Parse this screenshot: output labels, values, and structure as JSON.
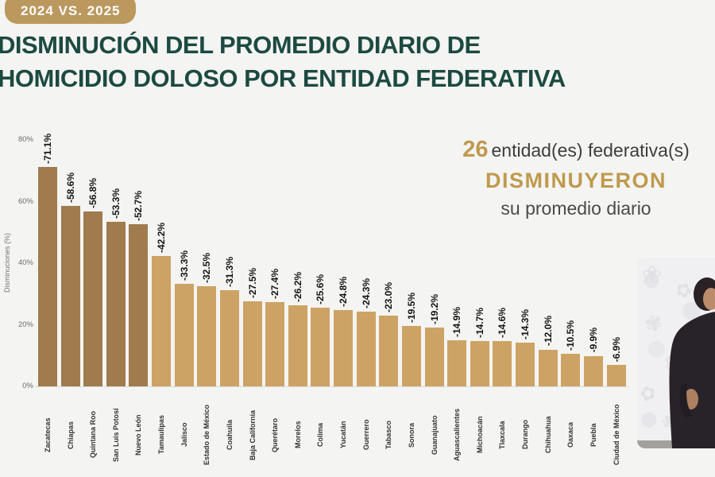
{
  "header": {
    "badge": "2024 VS. 2025",
    "title_line1": "DISMINUCIÓN DEL PROMEDIO DIARIO DE",
    "title_line2": "HOMICIDIO DOLOSO POR ENTIDAD FEDERATIVA"
  },
  "chart_data": {
    "type": "bar",
    "title": "Disminución del promedio diario de homicidio doloso por entidad federativa, 2024 vs. 2025",
    "xlabel": "",
    "ylabel": "Disminuciones (%)",
    "ylim": [
      0,
      80
    ],
    "ytick_values": [
      0,
      20,
      40,
      60,
      80
    ],
    "ytick_labels": [
      "0%",
      "20%",
      "40%",
      "60%",
      "80%"
    ],
    "grid": false,
    "legend": "none",
    "categories": [
      "Zacatecas",
      "Chiapas",
      "Quintana Roo",
      "San Luis Potosí",
      "Nuevo León",
      "Tamaulipas",
      "Jalisco",
      "Estado de México",
      "Coahuila",
      "Baja California",
      "Querétaro",
      "Morelos",
      "Colima",
      "Yucatán",
      "Guerrero",
      "Tabasco",
      "Sonora",
      "Guanajuato",
      "Aguascalientes",
      "Michoacán",
      "Tlaxcala",
      "Durango",
      "Chihuahua",
      "Oaxaca",
      "Puebla",
      "Ciudad de México"
    ],
    "values": [
      -71.1,
      -58.6,
      -56.8,
      -53.3,
      -52.7,
      -42.2,
      -33.3,
      -32.5,
      -31.3,
      -27.5,
      -27.4,
      -26.2,
      -25.6,
      -24.8,
      -24.3,
      -23.0,
      -19.5,
      -19.2,
      -14.9,
      -14.7,
      -14.6,
      -14.3,
      -12.0,
      -10.5,
      -9.9,
      -6.9
    ],
    "data_labels": [
      "-71.1%",
      "-58.6%",
      "-56.8%",
      "-53.3%",
      "-52.7%",
      "-42.2%",
      "-33.3%",
      "-32.5%",
      "-31.3%",
      "-27.5%",
      "-27.4%",
      "-26.2%",
      "-25.6%",
      "-24.8%",
      "-24.3%",
      "-23.0%",
      "-19.5%",
      "-19.2%",
      "-14.9%",
      "-14.7%",
      "-14.6%",
      "-14.3%",
      "-12.0%",
      "-10.5%",
      "-9.9%",
      "-6.9%"
    ],
    "dark_bar_count": 5
  },
  "callout": {
    "count": "26",
    "line1_rest": "entidad(es) federativa(s)",
    "line2": "DISMINUYERON",
    "line3": "su promedio diario"
  },
  "colors": {
    "title_teal": "#1c4a41",
    "accent_gold": "#bf9a4d",
    "badge_gold": "#bb985e",
    "bar_dark": "#9f7b4e",
    "bar_light": "#cda365"
  }
}
